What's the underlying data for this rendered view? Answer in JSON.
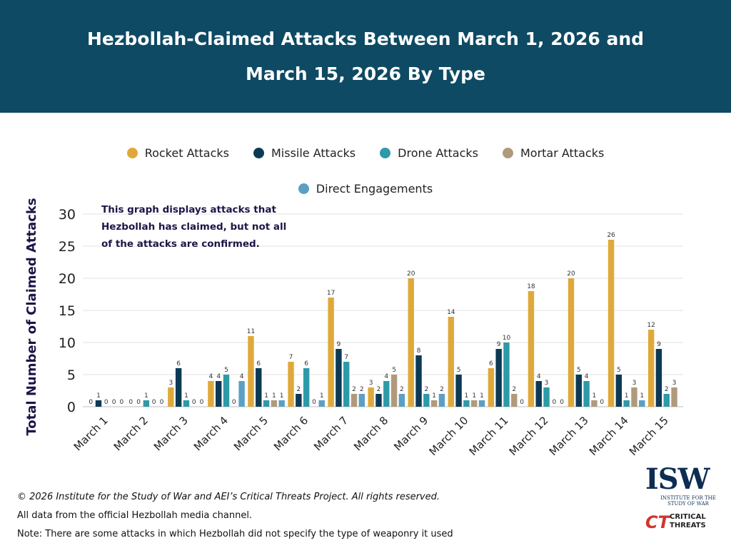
{
  "header": {
    "title_line1": "Hezbollah-Claimed Attacks Between March 1, 2026 and",
    "title_line2": "March 15, 2026 By Type"
  },
  "colors": {
    "header_bg": "#0e4a63",
    "rocket": "#dfa93a",
    "missile": "#0c3a55",
    "drone": "#2e9aa8",
    "mortar": "#b09a7c",
    "direct": "#5b9fc4"
  },
  "note": {
    "line1": "This graph displays attacks that",
    "line2": "Hezbollah has claimed, but not all",
    "line3": "of the attacks are confirmed."
  },
  "footer": {
    "copyright": "© 2026 Institute for the Study of War and AEI’s Critical Threats Project. All rights reserved.",
    "source": "All data from the official Hezbollah media channel.",
    "note": "Note: There are some attacks in which Hezbollah did not specify the type of weaponry it used"
  },
  "logos": {
    "isw_main": "ISW",
    "isw_sub1": "INSTITUTE FOR THE",
    "isw_sub2": "STUDY OF WAR",
    "ct_mark": "CT",
    "ct_line1": "CRITICAL",
    "ct_line2": "THREATS"
  },
  "chart_data": {
    "type": "bar",
    "ylabel": "Total Number of Claimed Attacks",
    "xlabel": "",
    "ylim": [
      0,
      30
    ],
    "yticks": [
      0,
      5,
      10,
      15,
      20,
      25,
      30
    ],
    "grid": true,
    "legend_position": "top",
    "categories": [
      "March 1",
      "March 2",
      "March 3",
      "March 4",
      "March 5",
      "March 6",
      "March 7",
      "March 8",
      "March 9",
      "March 10",
      "March 11",
      "March 12",
      "March 13",
      "March 14",
      "March 15"
    ],
    "series": [
      {
        "name": "Rocket Attacks",
        "color": "#dfa93a",
        "values": [
          0,
          0,
          3,
          4,
          11,
          7,
          17,
          3,
          20,
          14,
          6,
          18,
          20,
          26,
          12
        ]
      },
      {
        "name": "Missile Attacks",
        "color": "#0c3a55",
        "values": [
          1,
          0,
          6,
          4,
          6,
          2,
          9,
          2,
          8,
          5,
          9,
          4,
          5,
          5,
          9
        ]
      },
      {
        "name": "Drone Attacks",
        "color": "#2e9aa8",
        "values": [
          0,
          1,
          1,
          5,
          1,
          6,
          7,
          4,
          2,
          1,
          10,
          3,
          4,
          1,
          2
        ]
      },
      {
        "name": "Mortar Attacks",
        "color": "#b09a7c",
        "values": [
          0,
          0,
          0,
          0,
          1,
          0,
          2,
          5,
          1,
          1,
          2,
          0,
          1,
          3,
          3
        ]
      },
      {
        "name": "Direct Engagements",
        "color": "#5b9fc4",
        "values": [
          0,
          0,
          0,
          4,
          1,
          1,
          2,
          2,
          2,
          1,
          0,
          0,
          0,
          1,
          null
        ]
      }
    ]
  }
}
